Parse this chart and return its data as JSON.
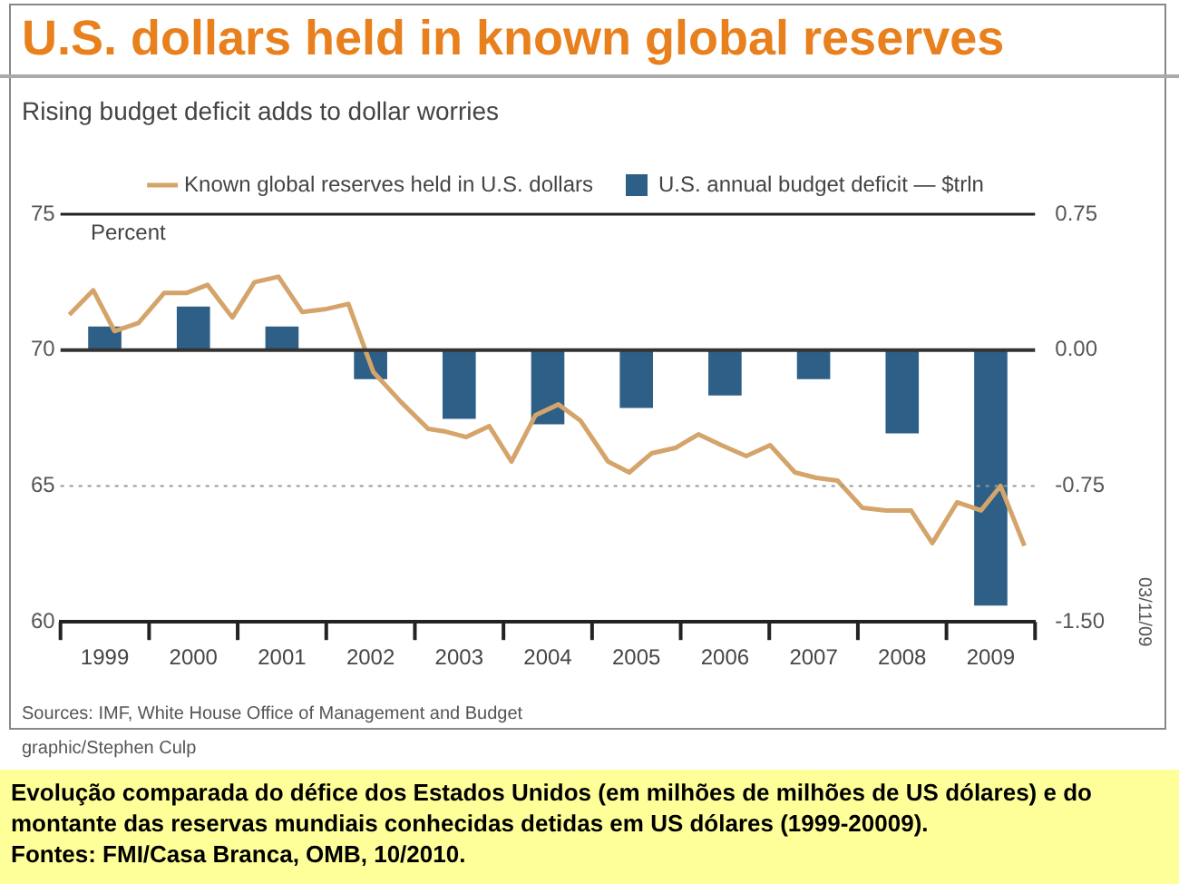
{
  "chart_data": {
    "type": "bar",
    "title": "U.S. dollars held in known global reserves",
    "subtitle": "Rising budget deficit adds to dollar worries",
    "ylabel": "Percent",
    "annotations": [
      "Sources: IMF, White House Office of Management and Budget",
      "03/11/09",
      "graphic/Stephen Culp",
      "Evolução comparada do défice dos Estados Unidos (em milhões de milhões de US dólares) e do montante das reservas mundiais conhecidas detidas em US dólares (1999-20009).",
      "Fontes: FMI/Casa Branca, OMB, 10/2010."
    ],
    "xlim": [
      1999,
      2010
    ],
    "xticks": [
      {
        "value": 1999,
        "label": null
      },
      {
        "value": 1999.5,
        "label": "1999"
      },
      {
        "value": 2000,
        "label": null
      },
      {
        "value": 2000.5,
        "label": "2000"
      },
      {
        "value": 2001,
        "label": null
      },
      {
        "value": 2001.5,
        "label": "2001"
      },
      {
        "value": 2002,
        "label": null
      },
      {
        "value": 2002.5,
        "label": "2002"
      },
      {
        "value": 2003,
        "label": null
      },
      {
        "value": 2003.5,
        "label": "2003"
      },
      {
        "value": 2004,
        "label": null
      },
      {
        "value": 2004.5,
        "label": "2004"
      },
      {
        "value": 2005,
        "label": null
      },
      {
        "value": 2005.5,
        "label": "2005"
      },
      {
        "value": 2006,
        "label": null
      },
      {
        "value": 2006.5,
        "label": "2006"
      },
      {
        "value": 2007,
        "label": null
      },
      {
        "value": 2007.5,
        "label": "2007"
      },
      {
        "value": 2008,
        "label": null
      },
      {
        "value": 2008.5,
        "label": "2008"
      },
      {
        "value": 2009,
        "label": null
      },
      {
        "value": 2009.5,
        "label": "2009"
      },
      {
        "value": 2010,
        "label": null
      }
    ],
    "series": [
      {
        "name": "Known global reserves held in U.S. dollars",
        "type": "line",
        "color": "#d4a46a",
        "x": [
          1999.1,
          1999.37,
          1999.61,
          1999.88,
          2000.17,
          2000.42,
          2000.66,
          2000.94,
          2001.19,
          2001.46,
          2001.73,
          2001.98,
          2002.25,
          2002.53,
          2002.84,
          2003.15,
          2003.35,
          2003.58,
          2003.84,
          2004.09,
          2004.36,
          2004.62,
          2004.87,
          2005.18,
          2005.42,
          2005.67,
          2005.94,
          2006.2,
          2006.46,
          2006.74,
          2007.01,
          2007.29,
          2007.53,
          2007.77,
          2008.05,
          2008.32,
          2008.6,
          2008.84,
          2009.12,
          2009.39,
          2009.61,
          2009.88
        ],
        "values": [
          71.3,
          72.2,
          70.7,
          71.0,
          72.1,
          72.1,
          72.4,
          71.2,
          72.5,
          72.7,
          71.4,
          71.5,
          71.7,
          69.2,
          68.1,
          67.1,
          67.0,
          66.8,
          67.2,
          65.9,
          67.6,
          68.0,
          67.4,
          65.9,
          65.5,
          66.2,
          66.4,
          66.9,
          66.5,
          66.1,
          66.5,
          65.5,
          65.3,
          65.2,
          64.2,
          64.1,
          64.1,
          62.9,
          64.4,
          64.1,
          65.0,
          62.8
        ]
      },
      {
        "name": "U.S. annual budget deficit — $trln",
        "axis": "y2",
        "color": "#2e5f86",
        "x": [
          1999.5,
          2000.5,
          2001.5,
          2002.5,
          2003.5,
          2004.5,
          2005.5,
          2006.5,
          2007.5,
          2008.5,
          2009.5
        ],
        "values": [
          0.13,
          0.24,
          0.13,
          -0.16,
          -0.38,
          -0.41,
          -0.32,
          -0.25,
          -0.16,
          -0.46,
          -1.41
        ]
      }
    ],
    "ylim": [
      60,
      75
    ],
    "yticks": [
      60,
      65,
      70,
      75
    ],
    "y2lim": [
      -1.5,
      0.75
    ],
    "y2ticks": [
      {
        "value": -1.5,
        "label": "-1.50"
      },
      {
        "value": -0.75,
        "label": "-0.75"
      },
      {
        "value": 0,
        "label": "0.00"
      },
      {
        "value": 0.75,
        "label": "0.75"
      }
    ],
    "ref_lines": [
      {
        "axis": "y2",
        "value": 0,
        "color": "#333333"
      },
      {
        "axis": "y",
        "value": 65,
        "color": "#999999",
        "line_style": "dotted"
      }
    ],
    "legend": "top",
    "marker": "none",
    "line_style": "solid"
  }
}
